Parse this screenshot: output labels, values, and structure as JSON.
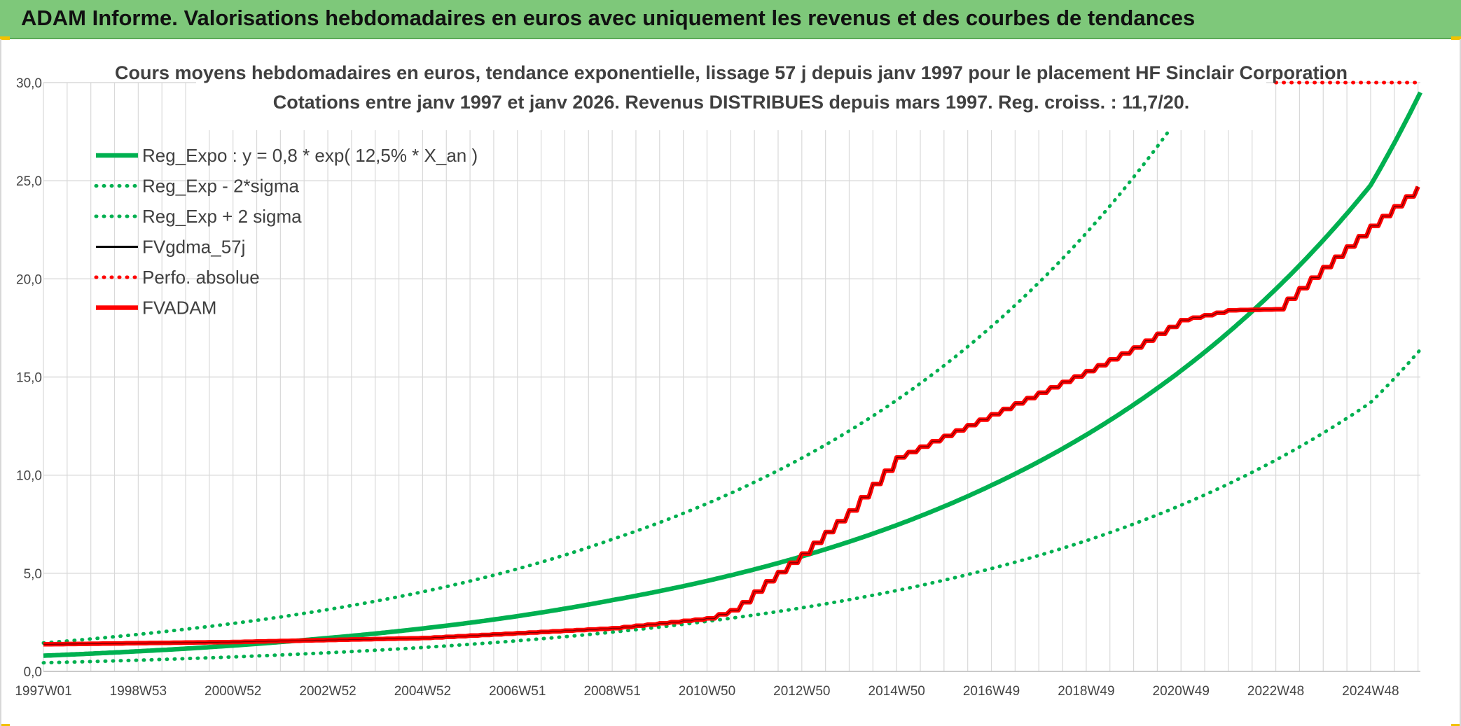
{
  "header": {
    "title": "ADAM Informe. Valorisations hebdomadaires en euros avec uniquement les revenus et des courbes de tendances"
  },
  "colors": {
    "header_bg": "#7ec87a",
    "green": "#00b050",
    "red": "#ff0000",
    "black": "#000000",
    "grid": "#d9d9d9"
  },
  "chart_data": {
    "type": "line",
    "title": "Cours moyens hebdomadaires en euros, tendance exponentielle, lissage 57 j depuis janv 1997 pour le placement HF Sinclair Corporation",
    "subtitle": "Cotations entre janv 1997 et janv 2026. Revenus DISTRIBUES depuis mars 1997. Reg. croiss. : 11,7/20.",
    "xlabel": "",
    "ylabel": "",
    "x_range": [
      1997.0,
      2026.05
    ],
    "ylim": [
      0,
      30
    ],
    "yticks": [
      "0,0",
      "5,0",
      "10,0",
      "15,0",
      "20,0",
      "25,0",
      "30,0"
    ],
    "ytick_values": [
      0,
      5,
      10,
      15,
      20,
      25,
      30
    ],
    "xticks": [
      "1997W01",
      "1998W53",
      "2000W52",
      "2002W52",
      "2004W52",
      "2006W51",
      "2008W51",
      "2010W50",
      "2012W50",
      "2014W50",
      "2016W49",
      "2018W49",
      "2020W49",
      "2022W48",
      "2024W48"
    ],
    "xtick_values": [
      1997.0,
      1999.0,
      2001.0,
      2003.0,
      2005.0,
      2007.0,
      2009.0,
      2011.0,
      2013.0,
      2015.0,
      2017.0,
      2019.0,
      2021.0,
      2023.0,
      2025.0
    ],
    "grid": true,
    "legend_position": "top-left",
    "series": [
      {
        "name": "Reg_Expo : y = 0,8 * exp( 12,5% *  X_an )",
        "color": "#00b050",
        "style": "solid",
        "x": [
          1997.0,
          2000.0,
          2003.0,
          2006.0,
          2009.0,
          2011.0,
          2013.0,
          2015.0,
          2017.0,
          2019.0,
          2021.0,
          2023.0,
          2025.0,
          2026.05
        ],
        "y": [
          0.8,
          1.16,
          1.7,
          2.48,
          3.63,
          4.61,
          5.86,
          7.45,
          9.48,
          12.05,
          15.32,
          19.48,
          24.77,
          29.5
        ]
      },
      {
        "name": "Reg_Exp - 2*sigma",
        "color": "#00b050",
        "style": "dotted",
        "x": [
          1997.0,
          2000.0,
          2003.0,
          2006.0,
          2009.0,
          2011.0,
          2013.0,
          2015.0,
          2017.0,
          2019.0,
          2021.0,
          2023.0,
          2025.0,
          2026.05
        ],
        "y": [
          0.44,
          0.65,
          0.95,
          1.38,
          2.0,
          2.55,
          3.24,
          4.12,
          5.24,
          6.66,
          8.47,
          10.77,
          13.7,
          16.4
        ]
      },
      {
        "name": "Reg_Exp + 2 sigma",
        "color": "#00b050",
        "style": "dotted",
        "x": [
          1997.0,
          2000.0,
          2003.0,
          2006.0,
          2009.0,
          2011.0,
          2013.0,
          2015.0,
          2017.0,
          2019.0,
          2021.0
        ],
        "y": [
          1.45,
          2.15,
          3.15,
          4.6,
          6.73,
          8.55,
          10.87,
          13.82,
          17.57,
          22.33,
          28.4
        ]
      },
      {
        "name": "FVgdma_57j",
        "color": "#000000",
        "style": "solid",
        "x": [
          1997.0,
          2001.0,
          2005.0,
          2009.0,
          2011.0,
          2011.6,
          2012.2,
          2013.0,
          2014.0,
          2015.0,
          2016.0,
          2017.0,
          2018.0,
          2019.0,
          2020.0,
          2021.0,
          2022.0,
          2023.0,
          2024.0,
          2025.0,
          2026.05
        ],
        "y": [
          1.38,
          1.5,
          1.7,
          2.2,
          2.7,
          3.2,
          4.5,
          6.0,
          8.2,
          10.9,
          12.0,
          13.1,
          14.2,
          15.3,
          16.5,
          17.9,
          18.4,
          18.45,
          20.6,
          22.7,
          24.8
        ]
      },
      {
        "name": "Perfo. absolue",
        "color": "#ff0000",
        "style": "dotted",
        "x": [
          2023.0,
          2025.0,
          2026.05
        ],
        "y": [
          30.0,
          30.0,
          30.0
        ]
      },
      {
        "name": "FVADAM",
        "color": "#ff0000",
        "style": "solid",
        "x": [
          1997.0,
          2001.0,
          2005.0,
          2009.0,
          2011.0,
          2011.6,
          2012.2,
          2013.0,
          2014.0,
          2015.0,
          2016.0,
          2017.0,
          2018.0,
          2019.0,
          2020.0,
          2021.0,
          2022.0,
          2023.0,
          2024.0,
          2025.0,
          2026.05
        ],
        "y": [
          1.38,
          1.5,
          1.7,
          2.2,
          2.7,
          3.2,
          4.5,
          6.0,
          8.2,
          10.9,
          12.0,
          13.1,
          14.2,
          15.3,
          16.5,
          17.9,
          18.4,
          18.45,
          20.6,
          22.7,
          24.8
        ]
      }
    ]
  }
}
